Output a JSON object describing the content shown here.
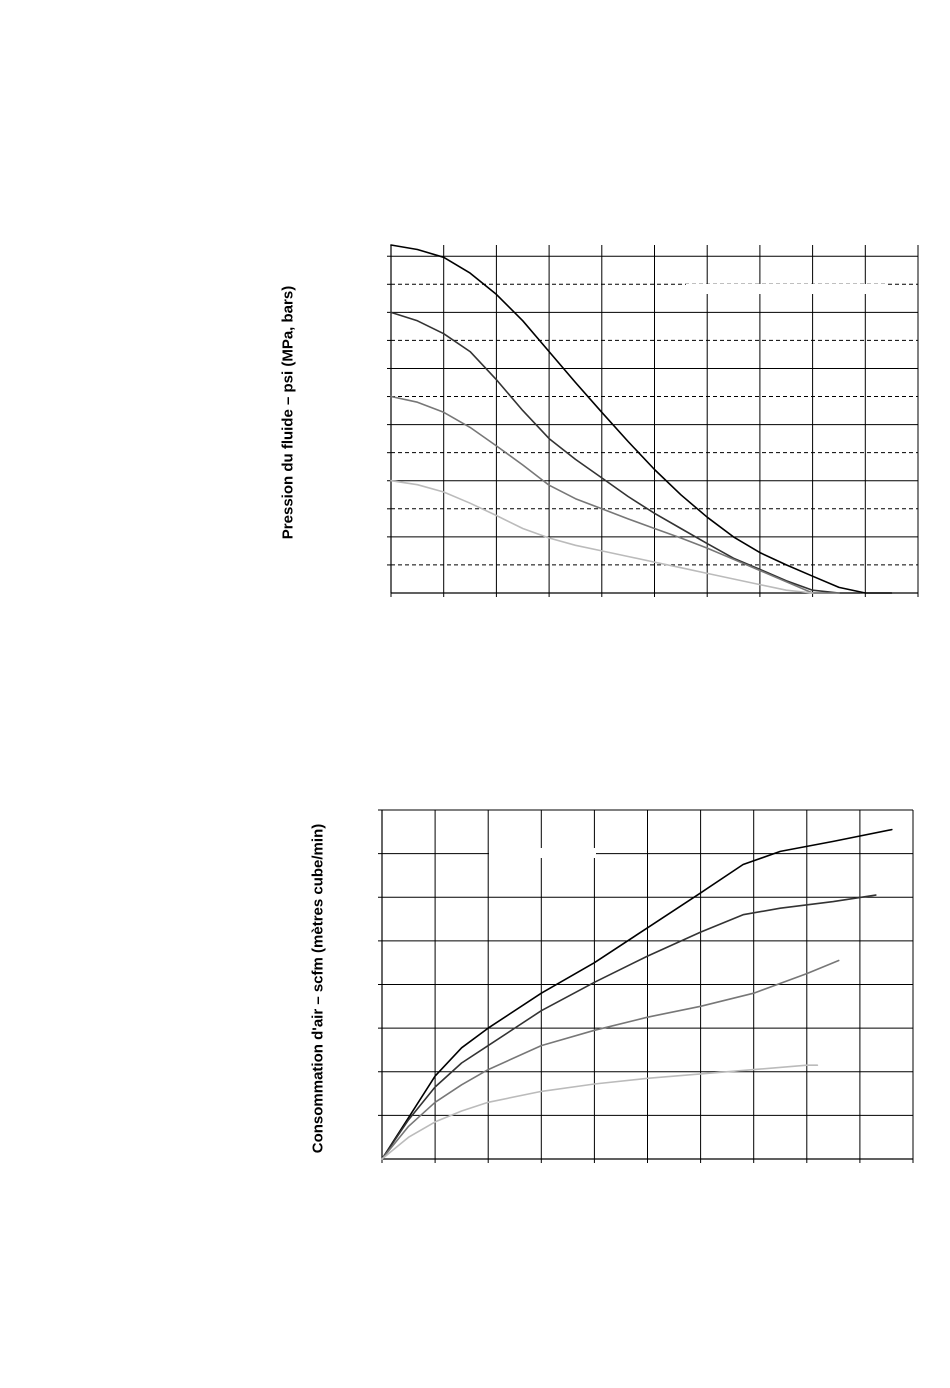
{
  "chart_data": [
    {
      "type": "line",
      "title": "",
      "xlabel": "",
      "ylabel": "Pression du fluide – psi (MPa, bars)",
      "xlim": [
        0,
        10
      ],
      "ylim": [
        0,
        6.2
      ],
      "x_gridlines": 10,
      "y_solid_gridlines": [
        1,
        2,
        3,
        4,
        5,
        6
      ],
      "y_dashed_gridlines": [
        0.5,
        1.5,
        2.5,
        3.5,
        4.5,
        5.5
      ],
      "grid": true,
      "legend": "none",
      "series": [
        {
          "color": "#000000",
          "x": [
            0,
            0.5,
            1,
            1.5,
            2,
            2.5,
            3,
            3.5,
            4,
            4.5,
            5,
            5.5,
            6,
            6.5,
            7,
            7.5,
            8,
            8.5,
            9,
            9.5
          ],
          "y": [
            6.2,
            6.12,
            5.98,
            5.7,
            5.32,
            4.85,
            4.3,
            3.75,
            3.22,
            2.7,
            2.2,
            1.75,
            1.35,
            1.0,
            0.72,
            0.5,
            0.3,
            0.1,
            0.0,
            0.0
          ]
        },
        {
          "color": "#333333",
          "x": [
            0,
            0.5,
            1,
            1.5,
            2,
            2.5,
            3,
            3.5,
            4,
            4.5,
            5,
            5.5,
            6,
            6.5,
            7,
            7.5,
            8,
            8.5,
            8.9
          ],
          "y": [
            5.0,
            4.85,
            4.62,
            4.3,
            3.8,
            3.25,
            2.75,
            2.38,
            2.05,
            1.72,
            1.42,
            1.15,
            0.88,
            0.62,
            0.42,
            0.22,
            0.05,
            0.0,
            0.0
          ]
        },
        {
          "color": "#777777",
          "x": [
            0,
            0.5,
            1,
            1.5,
            2,
            2.5,
            3,
            3.5,
            4,
            4.5,
            5,
            5.5,
            6,
            6.5,
            7,
            7.5,
            8,
            8.5
          ],
          "y": [
            3.5,
            3.4,
            3.22,
            2.95,
            2.62,
            2.28,
            1.92,
            1.68,
            1.5,
            1.32,
            1.15,
            0.98,
            0.8,
            0.6,
            0.4,
            0.2,
            0.0,
            0.0
          ]
        },
        {
          "color": "#bbbbbb",
          "x": [
            0,
            0.5,
            1,
            1.5,
            2,
            2.5,
            3,
            3.5,
            4,
            4.5,
            5,
            5.5,
            6,
            6.5,
            7,
            7.5,
            8
          ],
          "y": [
            2.0,
            1.93,
            1.8,
            1.6,
            1.38,
            1.15,
            0.98,
            0.85,
            0.75,
            0.65,
            0.55,
            0.45,
            0.35,
            0.25,
            0.15,
            0.05,
            0.0
          ]
        }
      ]
    },
    {
      "type": "line",
      "title": "",
      "xlabel": "",
      "ylabel": "Consommation d'air – scfm (mètres cube/min)",
      "xlim": [
        0,
        10
      ],
      "ylim": [
        0,
        8
      ],
      "x_gridlines": 10,
      "y_solid_gridlines": [
        1,
        2,
        3,
        4,
        5,
        6,
        7,
        8
      ],
      "grid": true,
      "legend": "none",
      "series": [
        {
          "color": "#000000",
          "x": [
            0,
            0.5,
            1,
            1.5,
            2,
            3,
            4,
            5,
            6,
            6.8,
            7.5,
            8.5,
            9.6
          ],
          "y": [
            0,
            0.95,
            1.9,
            2.55,
            3.0,
            3.8,
            4.5,
            5.3,
            6.1,
            6.75,
            7.05,
            7.28,
            7.55
          ]
        },
        {
          "color": "#333333",
          "x": [
            0,
            0.5,
            1,
            1.5,
            2,
            3,
            4,
            5,
            6,
            6.8,
            7.5,
            8.5,
            9.3
          ],
          "y": [
            0,
            0.9,
            1.65,
            2.2,
            2.6,
            3.4,
            4.05,
            4.65,
            5.2,
            5.6,
            5.75,
            5.9,
            6.05
          ]
        },
        {
          "color": "#777777",
          "x": [
            0,
            0.5,
            1,
            1.5,
            2,
            3,
            4,
            5,
            6,
            7,
            8,
            8.6
          ],
          "y": [
            0,
            0.75,
            1.3,
            1.7,
            2.05,
            2.6,
            2.95,
            3.25,
            3.5,
            3.8,
            4.25,
            4.55
          ]
        },
        {
          "color": "#bbbbbb",
          "x": [
            0,
            0.5,
            1,
            1.5,
            2,
            3,
            4,
            5,
            6,
            7,
            8,
            8.2
          ],
          "y": [
            0,
            0.5,
            0.85,
            1.1,
            1.3,
            1.55,
            1.72,
            1.85,
            1.95,
            2.05,
            2.15,
            2.15
          ]
        }
      ]
    }
  ]
}
